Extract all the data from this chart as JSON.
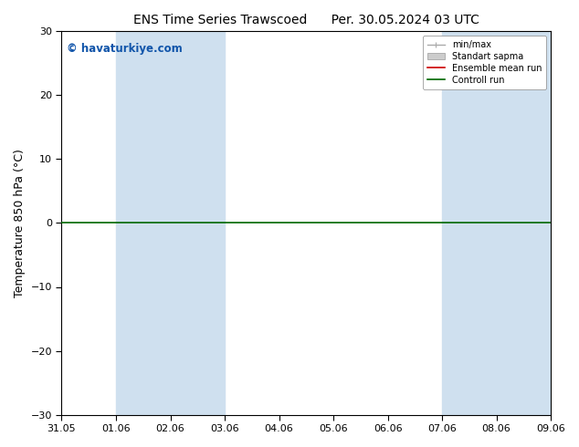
{
  "title_left": "ENS Time Series Trawscoed",
  "title_right": "Per. 30.05.2024 03 UTC",
  "ylabel": "Temperature 850 hPa (°C)",
  "watermark": "© havaturkiye.com",
  "x_tick_labels": [
    "31.05",
    "01.06",
    "02.06",
    "03.06",
    "04.06",
    "05.06",
    "06.06",
    "07.06",
    "08.06",
    "09.06"
  ],
  "ylim": [
    -30,
    30
  ],
  "yticks": [
    -30,
    -20,
    -10,
    0,
    10,
    20,
    30
  ],
  "shaded_regions": [
    {
      "xstart": 1,
      "xend": 3,
      "color": "#cfe0ef"
    },
    {
      "xstart": 7,
      "xend": 9,
      "color": "#cfe0ef"
    }
  ],
  "hline_y": 0,
  "hline_color": "#006600",
  "hline_lw": 1.2,
  "legend_items": [
    {
      "label": "min/max",
      "color": "#aaaaaa",
      "lw": 1.0
    },
    {
      "label": "Standart sapma",
      "color": "#cccccc",
      "lw": 4.0
    },
    {
      "label": "Ensemble mean run",
      "color": "#cc0000",
      "lw": 1.2
    },
    {
      "label": "Controll run",
      "color": "#006600",
      "lw": 1.2
    }
  ],
  "background_color": "#ffffff",
  "plot_bg_color": "#ffffff",
  "title_fontsize": 10,
  "label_fontsize": 9,
  "tick_fontsize": 8,
  "watermark_color": "#1155aa"
}
